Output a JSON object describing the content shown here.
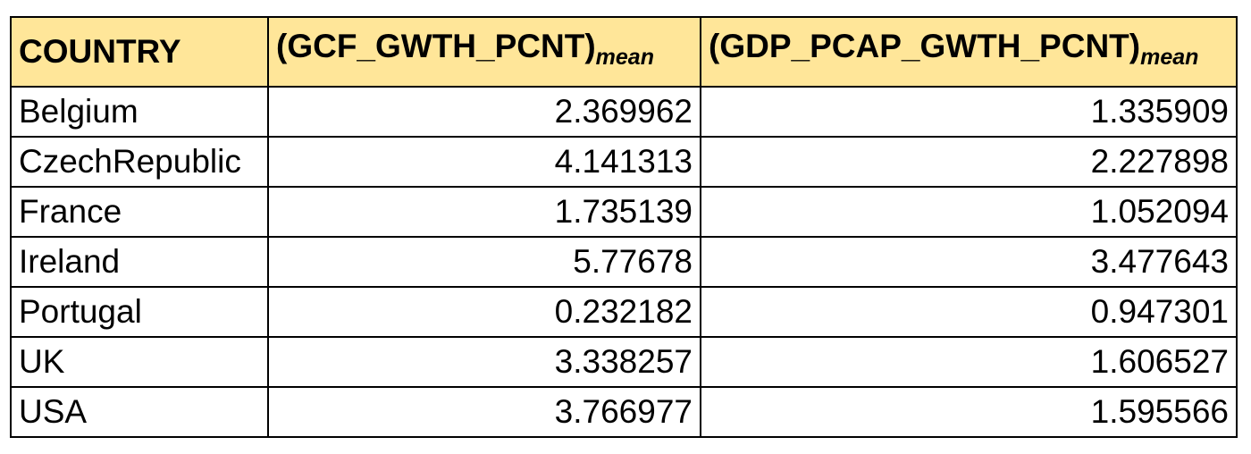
{
  "table": {
    "headers": [
      {
        "main": "COUNTRY",
        "sub": ""
      },
      {
        "main": "(GCF_GWTH_PCNT)",
        "sub": "mean"
      },
      {
        "main": "(GDP_PCAP_GWTH_PCNT)",
        "sub": "mean"
      }
    ],
    "rows": [
      {
        "country": "Belgium",
        "gcf": "2.369962",
        "gdp": "1.335909"
      },
      {
        "country": "CzechRepublic",
        "gcf": "4.141313",
        "gdp": "2.227898"
      },
      {
        "country": "France",
        "gcf": "1.735139",
        "gdp": "1.052094"
      },
      {
        "country": "Ireland",
        "gcf": "5.77678",
        "gdp": "3.477643"
      },
      {
        "country": "Portugal",
        "gcf": "0.232182",
        "gdp": "0.947301"
      },
      {
        "country": "UK",
        "gcf": "3.338257",
        "gdp": "1.606527"
      },
      {
        "country": "USA",
        "gcf": "3.766977",
        "gdp": "1.595566"
      }
    ]
  },
  "colors": {
    "header_fill": "#ffe699",
    "border": "#000000"
  }
}
